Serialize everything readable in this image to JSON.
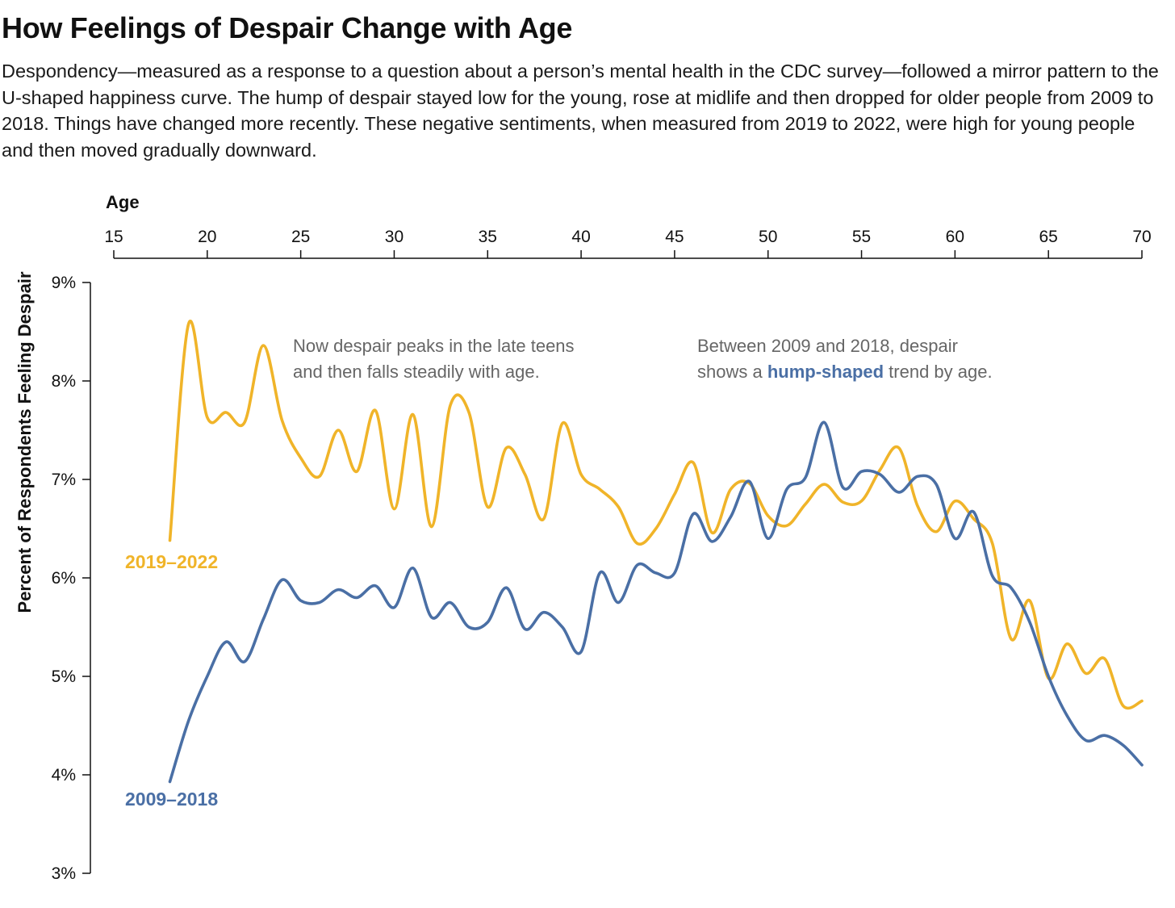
{
  "title": "How Feelings of Despair Change with Age",
  "subtitle": "Despondency—measured as a response to a question about a person’s mental health in the CDC survey—followed a mirror pattern to the U-shaped happiness curve. The hump of despair stayed low for the young, rose at midlife and then dropped for older people from 2009 to 2018. Things have changed more recently. These negative sentiments, when measured from 2019 to 2022, were high for young people and then moved gradually downward.",
  "chart_data": {
    "type": "line",
    "xlabel": "Age",
    "ylabel": "Percent of Respondents Feeling Despair",
    "xlim": [
      15,
      70
    ],
    "ylim": [
      3,
      9
    ],
    "x_ticks": [
      "15",
      "20",
      "25",
      "30",
      "35",
      "40",
      "45",
      "50",
      "55",
      "60",
      "65",
      "70"
    ],
    "y_ticks": [
      "9%",
      "8%",
      "7%",
      "6%",
      "5%",
      "4%",
      "3%"
    ],
    "x_axis_position": "top",
    "grid": false,
    "x": [
      18,
      19,
      20,
      21,
      22,
      23,
      24,
      25,
      26,
      27,
      28,
      29,
      30,
      31,
      32,
      33,
      34,
      35,
      36,
      37,
      38,
      39,
      40,
      41,
      42,
      43,
      44,
      45,
      46,
      47,
      48,
      49,
      50,
      51,
      52,
      53,
      54,
      55,
      56,
      57,
      58,
      59,
      60,
      61,
      62,
      63,
      64,
      65,
      66,
      67,
      68,
      69,
      70
    ],
    "series": [
      {
        "name": "2019–2022",
        "color": "#F0B429",
        "values": [
          6.38,
          8.58,
          7.63,
          7.68,
          7.58,
          8.36,
          7.6,
          7.22,
          7.03,
          7.5,
          7.08,
          7.7,
          6.7,
          7.66,
          6.52,
          7.75,
          7.68,
          6.72,
          7.32,
          7.05,
          6.6,
          7.57,
          7.05,
          6.9,
          6.72,
          6.35,
          6.5,
          6.85,
          7.17,
          6.46,
          6.9,
          6.96,
          6.63,
          6.53,
          6.75,
          6.95,
          6.77,
          6.78,
          7.1,
          7.32,
          6.73,
          6.47,
          6.78,
          6.6,
          6.35,
          5.38,
          5.77,
          4.98,
          5.33,
          5.03,
          5.18,
          4.7,
          4.75
        ]
      },
      {
        "name": "2009–2018",
        "color": "#4A6FA5",
        "values": [
          3.93,
          4.55,
          5.0,
          5.35,
          5.15,
          5.58,
          5.98,
          5.77,
          5.75,
          5.88,
          5.8,
          5.92,
          5.7,
          6.1,
          5.6,
          5.75,
          5.5,
          5.55,
          5.9,
          5.48,
          5.65,
          5.5,
          5.25,
          6.05,
          5.75,
          6.13,
          6.05,
          6.05,
          6.65,
          6.37,
          6.62,
          6.98,
          6.4,
          6.9,
          7.02,
          7.58,
          6.92,
          7.08,
          7.05,
          6.87,
          7.03,
          6.95,
          6.4,
          6.67,
          6.02,
          5.9,
          5.55,
          5.0,
          4.6,
          4.35,
          4.4,
          4.3,
          4.1
        ]
      }
    ],
    "annotations": {
      "left_line1": "Now despair peaks in the late teens",
      "left_line2": "and then falls steadily with age.",
      "right_line1": "Between 2009 and 2018, despair",
      "right_line2_pre": "shows a ",
      "right_line2_bold": "hump-shaped",
      "right_line2_post": " trend by age."
    },
    "series_labels": {
      "series_2019_2022": "2019–2022",
      "series_2009_2018": "2009–2018"
    },
    "colors": {
      "annotation": "#666666",
      "axis": "#111111"
    }
  }
}
